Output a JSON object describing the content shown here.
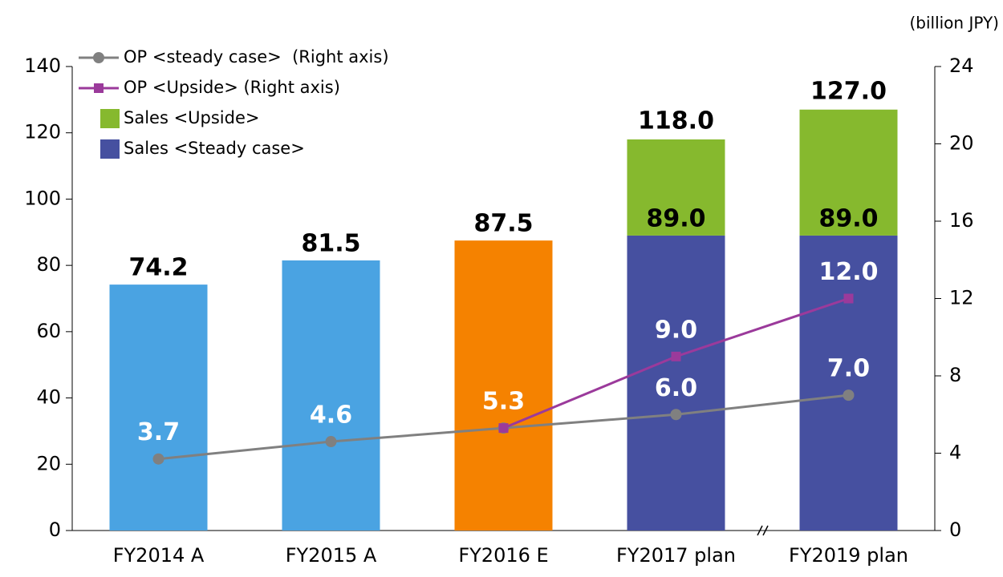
{
  "chart_data": {
    "type": "bar",
    "unit_label": "(billion JPY)",
    "categories": [
      "FY2014 A",
      "FY2015 A",
      "FY2016 E",
      "FY2017 plan",
      "FY2019 plan"
    ],
    "series": [
      {
        "name": "Sales <Steady case>",
        "color": "#4650a0",
        "colors": [
          "#4aa3e2",
          "#4aa3e2",
          "#f58200",
          "#4650a0",
          "#4650a0"
        ],
        "values": [
          74.2,
          81.5,
          87.5,
          89,
          89
        ],
        "value_labels": [
          "74.2",
          "81.5",
          "87.5",
          "89.0",
          "89.0"
        ]
      },
      {
        "name": "Sales <Upside>",
        "color": "#86b92e",
        "values": [
          null,
          null,
          null,
          29,
          38
        ],
        "total_labels": [
          null,
          null,
          null,
          "118.0",
          "127.0"
        ]
      },
      {
        "name": "OP <steady case>  (Right axis)",
        "type": "line",
        "axis": "y2",
        "color": "#808080",
        "marker": "circle",
        "values": [
          3.7,
          4.6,
          5.3,
          6.0,
          7.0
        ],
        "value_labels": [
          "3.7",
          "4.6",
          null,
          "6.0",
          "7.0"
        ]
      },
      {
        "name": "OP <Upside> (Right axis)",
        "type": "line",
        "axis": "y2",
        "color": "#9b3a9b",
        "marker": "square",
        "values": [
          null,
          null,
          5.3,
          9.0,
          12.0
        ],
        "value_labels": [
          null,
          null,
          "5.3",
          "9.0",
          "12.0"
        ]
      }
    ],
    "ylim": [
      0,
      140
    ],
    "yticks": [
      0,
      20,
      40,
      60,
      80,
      100,
      120,
      140
    ],
    "y2lim": [
      0,
      24
    ],
    "y2ticks": [
      0,
      4,
      8,
      12,
      16,
      20,
      24
    ],
    "legend_order": [
      2,
      3,
      1,
      0
    ]
  }
}
